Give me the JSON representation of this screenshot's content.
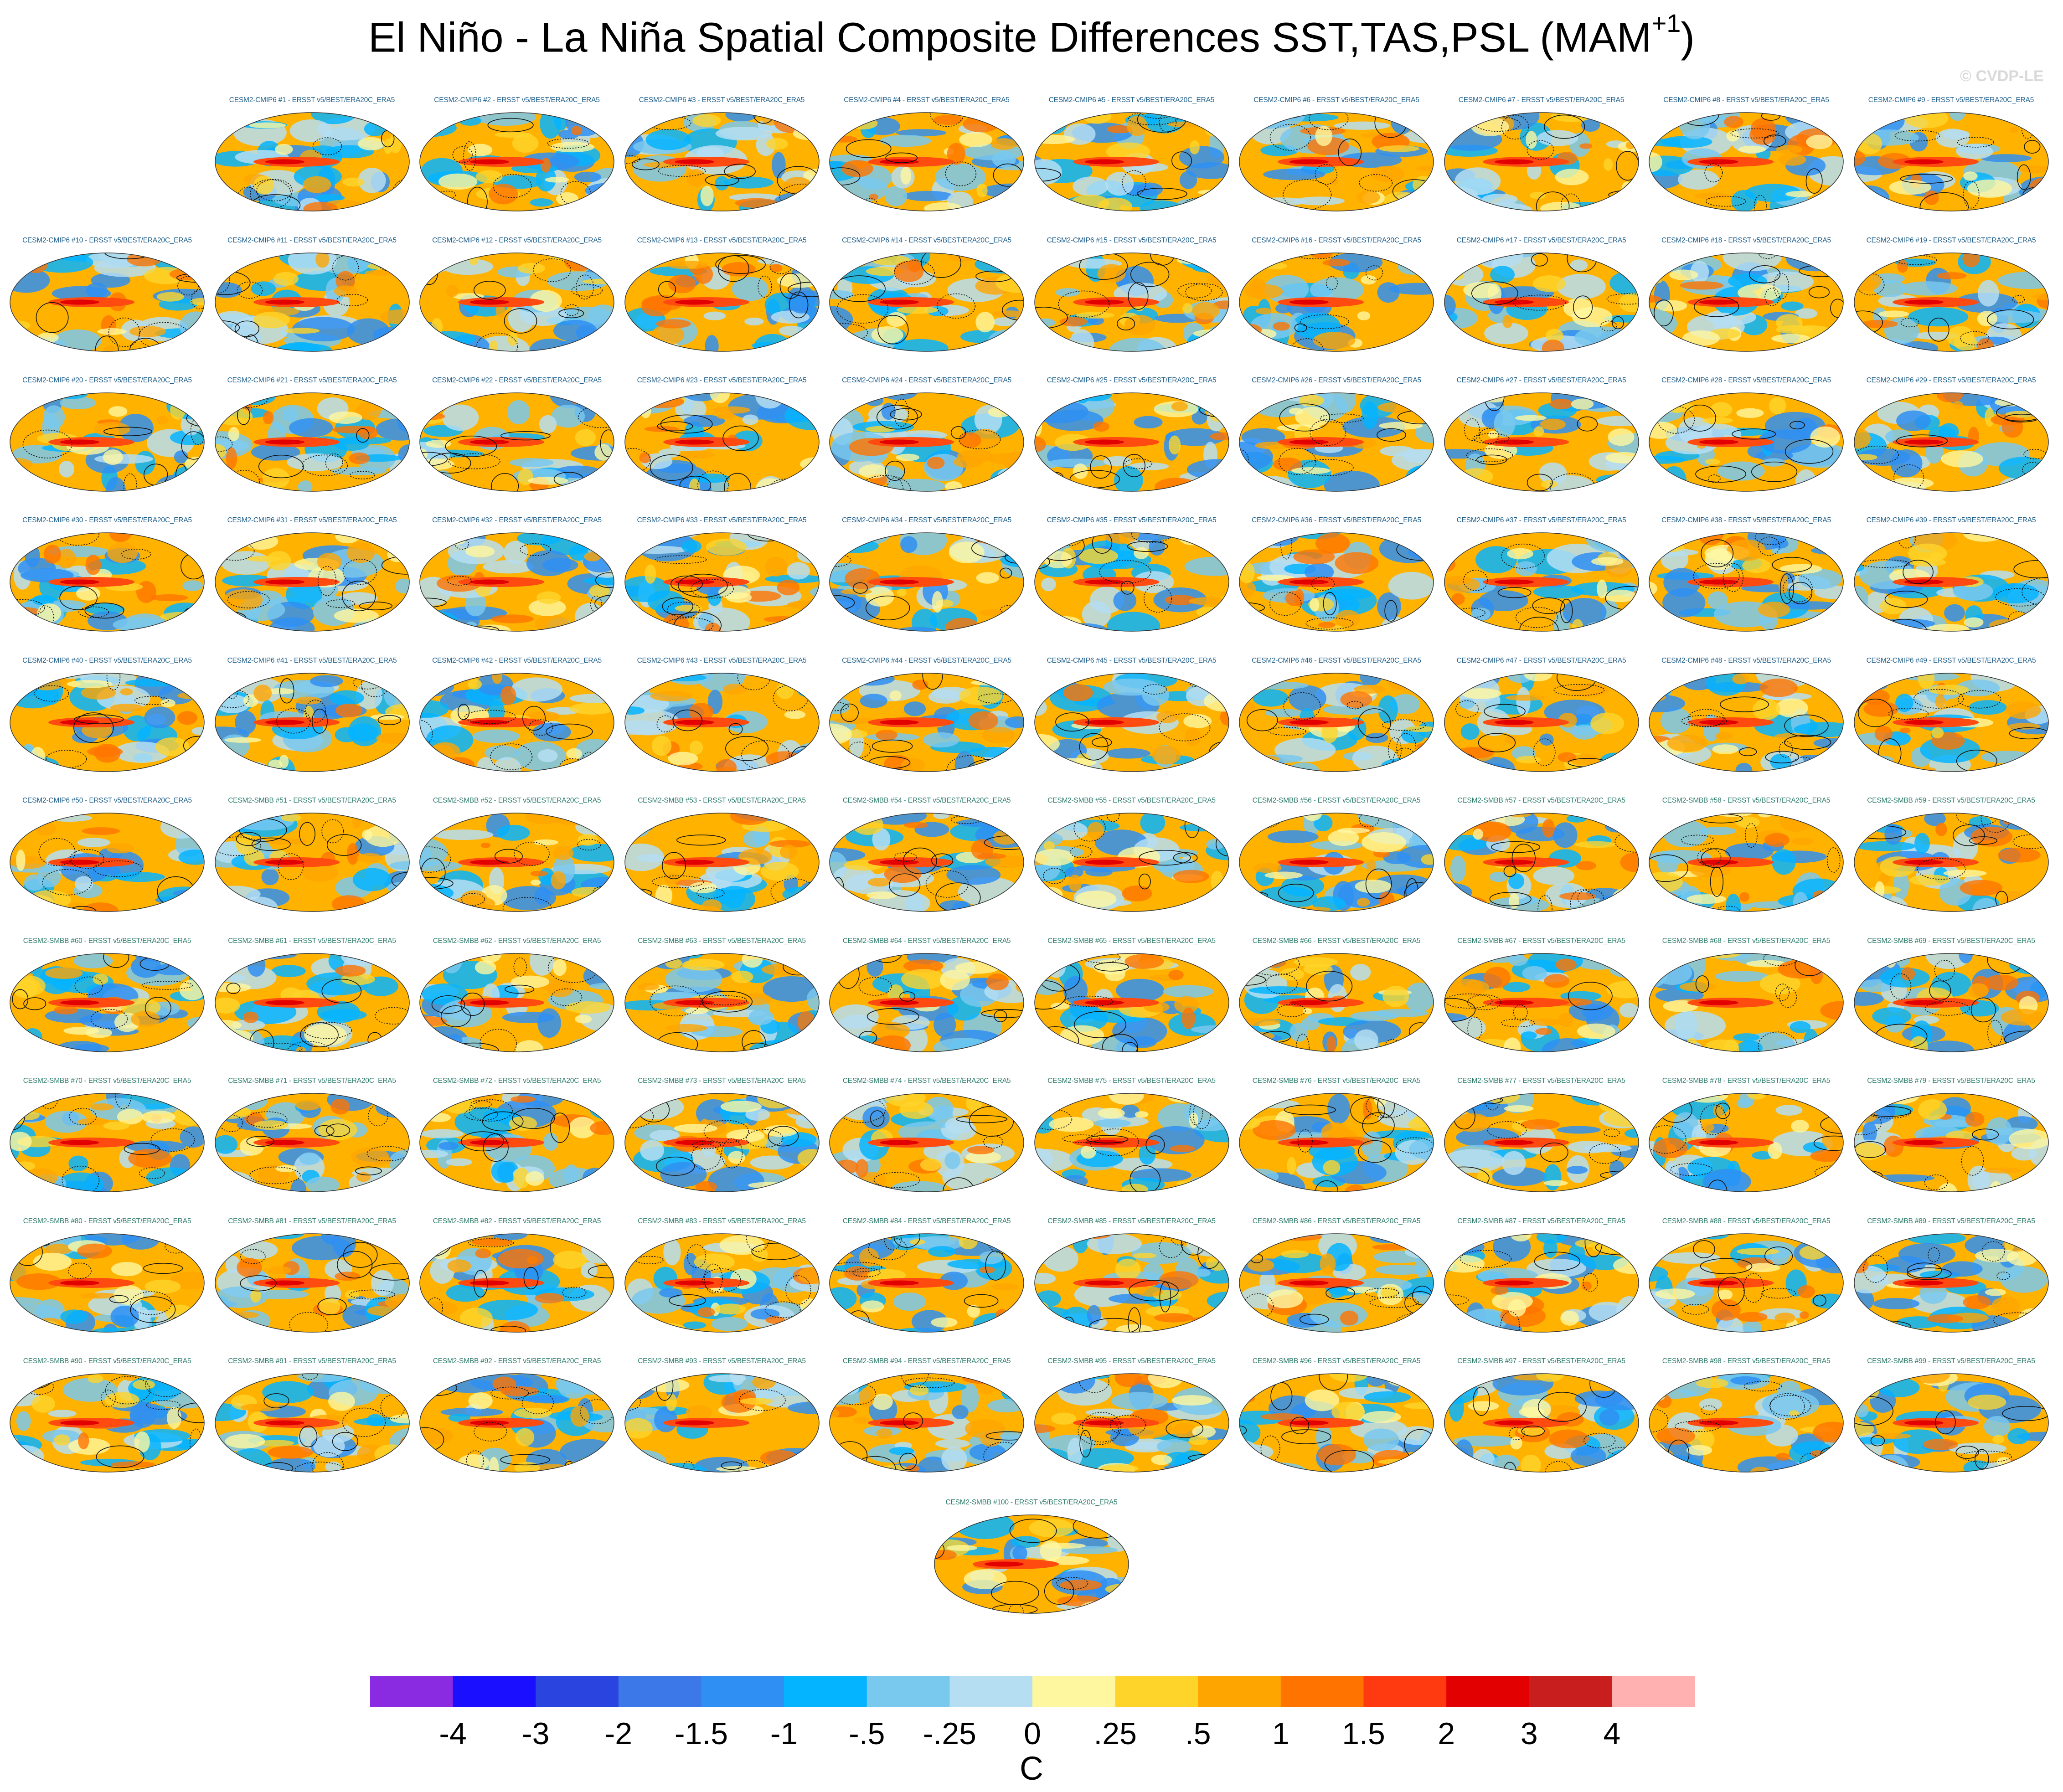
{
  "header": {
    "title": "El Niño - La Niña Spatial Composite Differences SST,TAS,PSL (MAM",
    "title_superscript": "+1",
    "title_close": ")",
    "copyright": "© CVDP-LE"
  },
  "chart_data": {
    "type": "heatmap",
    "title": "El Niño - La Niña Spatial Composite Differences SST,TAS,PSL (MAM+1)",
    "panel_count": 100,
    "panel_caption_suffix": "ERSST v5/BEST/ERA20C_ERA5",
    "panels": [
      "CESM2-CMIP6 #1",
      "CESM2-CMIP6 #2",
      "CESM2-CMIP6 #3",
      "CESM2-CMIP6 #4",
      "CESM2-CMIP6 #5",
      "CESM2-CMIP6 #6",
      "CESM2-CMIP6 #7",
      "CESM2-CMIP6 #8",
      "CESM2-CMIP6 #9",
      "CESM2-CMIP6 #10",
      "CESM2-CMIP6 #11",
      "CESM2-CMIP6 #12",
      "CESM2-CMIP6 #13",
      "CESM2-CMIP6 #14",
      "CESM2-CMIP6 #15",
      "CESM2-CMIP6 #16",
      "CESM2-CMIP6 #17",
      "CESM2-CMIP6 #18",
      "CESM2-CMIP6 #19",
      "CESM2-CMIP6 #20",
      "CESM2-CMIP6 #21",
      "CESM2-CMIP6 #22",
      "CESM2-CMIP6 #23",
      "CESM2-CMIP6 #24",
      "CESM2-CMIP6 #25",
      "CESM2-CMIP6 #26",
      "CESM2-CMIP6 #27",
      "CESM2-CMIP6 #28",
      "CESM2-CMIP6 #29",
      "CESM2-CMIP6 #30",
      "CESM2-CMIP6 #31",
      "CESM2-CMIP6 #32",
      "CESM2-CMIP6 #33",
      "CESM2-CMIP6 #34",
      "CESM2-CMIP6 #35",
      "CESM2-CMIP6 #36",
      "CESM2-CMIP6 #37",
      "CESM2-CMIP6 #38",
      "CESM2-CMIP6 #39",
      "CESM2-CMIP6 #40",
      "CESM2-CMIP6 #41",
      "CESM2-CMIP6 #42",
      "CESM2-CMIP6 #43",
      "CESM2-CMIP6 #44",
      "CESM2-CMIP6 #45",
      "CESM2-CMIP6 #46",
      "CESM2-CMIP6 #47",
      "CESM2-CMIP6 #48",
      "CESM2-CMIP6 #49",
      "CESM2-CMIP6 #50",
      "CESM2-SMBB #51",
      "CESM2-SMBB #52",
      "CESM2-SMBB #53",
      "CESM2-SMBB #54",
      "CESM2-SMBB #55",
      "CESM2-SMBB #56",
      "CESM2-SMBB #57",
      "CESM2-SMBB #58",
      "CESM2-SMBB #59",
      "CESM2-SMBB #60",
      "CESM2-SMBB #61",
      "CESM2-SMBB #62",
      "CESM2-SMBB #63",
      "CESM2-SMBB #64",
      "CESM2-SMBB #65",
      "CESM2-SMBB #66",
      "CESM2-SMBB #67",
      "CESM2-SMBB #68",
      "CESM2-SMBB #69",
      "CESM2-SMBB #70",
      "CESM2-SMBB #71",
      "CESM2-SMBB #72",
      "CESM2-SMBB #73",
      "CESM2-SMBB #74",
      "CESM2-SMBB #75",
      "CESM2-SMBB #76",
      "CESM2-SMBB #77",
      "CESM2-SMBB #78",
      "CESM2-SMBB #79",
      "CESM2-SMBB #80",
      "CESM2-SMBB #81",
      "CESM2-SMBB #82",
      "CESM2-SMBB #83",
      "CESM2-SMBB #84",
      "CESM2-SMBB #85",
      "CESM2-SMBB #86",
      "CESM2-SMBB #87",
      "CESM2-SMBB #88",
      "CESM2-SMBB #89",
      "CESM2-SMBB #90",
      "CESM2-SMBB #91",
      "CESM2-SMBB #92",
      "CESM2-SMBB #93",
      "CESM2-SMBB #94",
      "CESM2-SMBB #95",
      "CESM2-SMBB #96",
      "CESM2-SMBB #97",
      "CESM2-SMBB #98",
      "CESM2-SMBB #99",
      "CESM2-SMBB #100"
    ],
    "caption_colors": {
      "CESM2-CMIP6": "#1f5f8b",
      "CESM2-SMBB": "#2e7d6b"
    },
    "colorbar": {
      "label": "C",
      "tick_labels": [
        "-4",
        "-3",
        "-2",
        "-1.5",
        "-1",
        "-.5",
        "-.25",
        "0",
        ".25",
        ".5",
        "1",
        "1.5",
        "2",
        "3",
        "4"
      ],
      "colors": [
        "#8a2be2",
        "#1a0fff",
        "#2a44e0",
        "#3d78e8",
        "#2f8ff2",
        "#05b4ff",
        "#79c8ee",
        "#b5def2",
        "#fff7a0",
        "#ffd42a",
        "#ffa500",
        "#ff7400",
        "#ff3a10",
        "#e30000",
        "#c81e1e",
        "#ffb0b0"
      ]
    }
  }
}
